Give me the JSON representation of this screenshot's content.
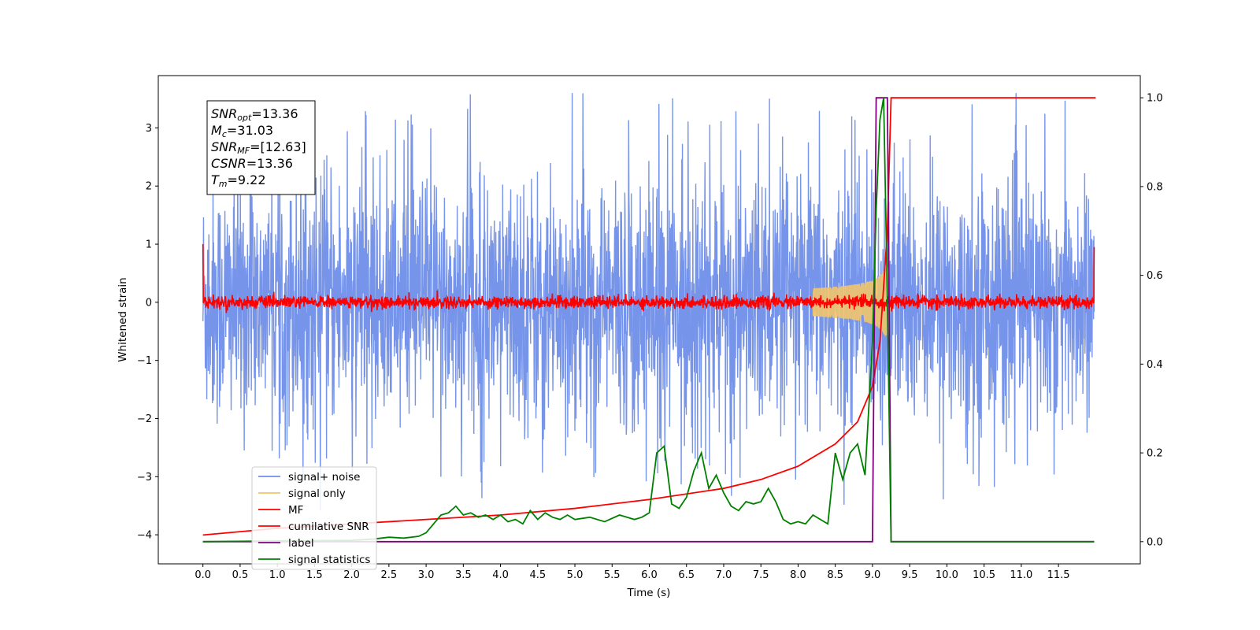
{
  "chart_data": {
    "type": "line",
    "xlabel": "Time (s)",
    "ylabel": "Whitened strain",
    "xlim": [
      -0.6,
      12.6
    ],
    "ylim": [
      -4.5,
      3.9
    ],
    "ylim_right": [
      -0.05,
      1.05
    ],
    "xticks": [
      0.0,
      0.5,
      1.0,
      1.5,
      2.0,
      2.5,
      3.0,
      3.5,
      4.0,
      4.5,
      5.0,
      5.5,
      6.0,
      6.5,
      7.0,
      7.5,
      8.0,
      8.5,
      9.0,
      9.5,
      10.0,
      10.5,
      11.0,
      11.5
    ],
    "xtick_labels": [
      "0.0",
      "0.5",
      "1.0",
      "1.5",
      "2.0",
      "2.5",
      "3.0",
      "3.5",
      "4.0",
      "4.5",
      "5.0",
      "5.5",
      "6.0",
      "6.5",
      "7.0",
      "7.5",
      "8.0",
      "8.5",
      "9.0",
      "9.5",
      "10.0",
      "10.5",
      "11.0",
      "11.5"
    ],
    "yticks_left": [
      3,
      2,
      1,
      0,
      -1,
      -2,
      -3,
      -4
    ],
    "ytick_labels_left": [
      "3",
      "2",
      "1",
      "0",
      "−1",
      "−2",
      "−3",
      "−4"
    ],
    "yticks_right": [
      1.0,
      0.8,
      0.6,
      0.4,
      0.2,
      0.0
    ],
    "ytick_labels_right": [
      "1.0",
      "0.8",
      "0.6",
      "0.4",
      "0.2",
      "0.0"
    ],
    "grid": false,
    "legend_position": "lower-left",
    "colors": {
      "signal_noise": "#6f8ee8",
      "signal_only": "#f2c46d",
      "mf": "#ff0000",
      "cumulative_snr": "#ff0000",
      "label": "#800080",
      "signal_statistics": "#008000"
    },
    "info_box": [
      {
        "base": "SNR",
        "sub": "opt",
        "rest": "=13.36"
      },
      {
        "base": "M",
        "sub": "c",
        "rest": "=31.03"
      },
      {
        "base": "SNR",
        "sub": "MF",
        "rest": "=[12.63]"
      },
      {
        "base": "CSNR",
        "sub": "",
        "rest": "=13.36"
      },
      {
        "base": "T",
        "sub": "m",
        "rest": "=9.22"
      }
    ],
    "series": [
      {
        "name": "signal+ noise",
        "axis": "left",
        "description_values": {
          "x_start": 0.0,
          "x_end": 11.98,
          "amplitude_typical": 1.2,
          "peak": 3.6,
          "trough": -4.15
        }
      },
      {
        "name": "signal only",
        "axis": "left",
        "chirp": {
          "t_merger": 9.22,
          "amplitude_peak": 0.6,
          "x_end": 9.3
        }
      },
      {
        "name": "MF",
        "axis": "left",
        "edges": {
          "start": 1.0,
          "end": 0.95
        },
        "noise_amplitude": 0.12
      },
      {
        "name": "cumilative SNR",
        "axis": "right",
        "x": [
          0.0,
          1.0,
          2.0,
          3.0,
          4.0,
          5.0,
          6.0,
          7.0,
          7.5,
          8.0,
          8.5,
          8.8,
          9.0,
          9.1,
          9.2,
          9.25,
          12.0
        ],
        "y": [
          0.015,
          0.03,
          0.04,
          0.05,
          0.06,
          0.075,
          0.095,
          0.12,
          0.14,
          0.17,
          0.22,
          0.27,
          0.35,
          0.45,
          0.7,
          1.0,
          1.0
        ]
      },
      {
        "name": "label",
        "axis": "right",
        "x": [
          0.0,
          9.0,
          9.05,
          9.2,
          9.25,
          11.98
        ],
        "y": [
          0.0,
          0.0,
          1.0,
          1.0,
          0.0,
          0.0
        ]
      },
      {
        "name": "signal statistics",
        "axis": "right",
        "x": [
          0.0,
          2.0,
          2.3,
          2.5,
          2.7,
          2.9,
          3.0,
          3.1,
          3.2,
          3.3,
          3.4,
          3.5,
          3.6,
          3.7,
          3.8,
          3.9,
          4.0,
          4.1,
          4.2,
          4.3,
          4.4,
          4.5,
          4.6,
          4.7,
          4.8,
          4.9,
          5.0,
          5.2,
          5.4,
          5.6,
          5.8,
          5.9,
          6.0,
          6.1,
          6.2,
          6.3,
          6.4,
          6.5,
          6.6,
          6.7,
          6.8,
          6.9,
          7.0,
          7.1,
          7.2,
          7.3,
          7.4,
          7.5,
          7.6,
          7.7,
          7.8,
          7.9,
          8.0,
          8.1,
          8.2,
          8.3,
          8.4,
          8.5,
          8.6,
          8.7,
          8.8,
          8.9,
          9.0,
          9.05,
          9.1,
          9.15,
          9.2,
          9.25,
          9.3,
          11.98
        ],
        "y": [
          0.0,
          0.003,
          0.006,
          0.01,
          0.008,
          0.012,
          0.02,
          0.04,
          0.06,
          0.065,
          0.08,
          0.06,
          0.065,
          0.055,
          0.06,
          0.05,
          0.06,
          0.045,
          0.05,
          0.04,
          0.07,
          0.05,
          0.065,
          0.055,
          0.05,
          0.06,
          0.05,
          0.055,
          0.045,
          0.06,
          0.05,
          0.055,
          0.065,
          0.2,
          0.215,
          0.085,
          0.075,
          0.1,
          0.16,
          0.2,
          0.12,
          0.15,
          0.11,
          0.08,
          0.07,
          0.09,
          0.085,
          0.09,
          0.12,
          0.09,
          0.05,
          0.04,
          0.045,
          0.04,
          0.06,
          0.05,
          0.04,
          0.2,
          0.14,
          0.2,
          0.22,
          0.15,
          0.45,
          0.75,
          0.95,
          1.0,
          0.55,
          0.0,
          0.0,
          0.0
        ]
      }
    ]
  }
}
